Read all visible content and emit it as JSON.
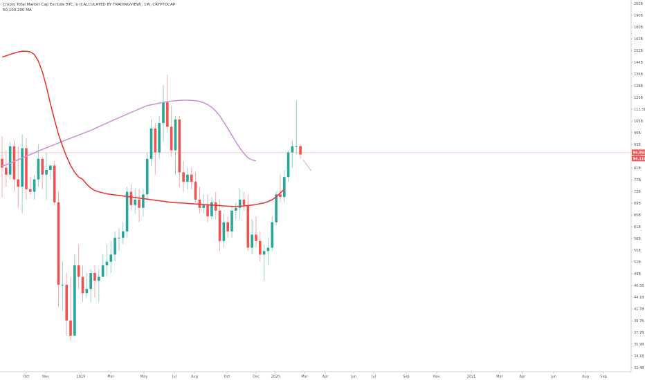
{
  "legend": {
    "title": "Crypto Total Market Cap Exclude BTC, $ (CALCULATED BY TRADINGVIEW), 1W, CRYPTOCAP",
    "ma_line": "50,100,200 MA"
  },
  "colors": {
    "up": "#26a69a",
    "down": "#ef5350",
    "ma_fast": "#e53935",
    "ma_slow": "#ce93d8",
    "price_line": "#f4c7c3",
    "tag_red": "#ef5350",
    "axis_text": "#555555"
  },
  "chart_data": {
    "type": "candlestick",
    "title": "Crypto Total Market Cap Exclude BTC, $ (CALCULATED BY TRADINGVIEW), 1W, CRYPTOCAP",
    "y_axis": {
      "scale": "log",
      "position": "right",
      "ticks": [
        "200B",
        "190B",
        "180B",
        "160B",
        "152B",
        "144B",
        "136B",
        "128B",
        "120B",
        "112.5B",
        "105B",
        "99B",
        "93B",
        "87B",
        "81B",
        "77B",
        "73B",
        "69B",
        "65B",
        "61B",
        "58B",
        "55B",
        "52B",
        "49B",
        "46.5B",
        "44.1B",
        "41.7B",
        "39.7B",
        "37.7B",
        "35.9B",
        "34.1B",
        "32.4B"
      ],
      "price_tags": [
        "94.893B",
        "94.11B"
      ]
    },
    "x_axis": {
      "ticks": [
        "Oct",
        "Nov",
        "2019",
        "Mar",
        "May",
        "Jul",
        "Aug",
        "Oct",
        "Dec",
        "2020",
        "Mar",
        "Apr",
        "Jun",
        "Jul",
        "Sep",
        "Nov",
        "2021",
        "Mar",
        "Apr",
        "Jun",
        "Aug",
        "Sep"
      ]
    },
    "candles": [
      {
        "o": 92,
        "h": 103,
        "l": 76,
        "c": 88
      },
      {
        "o": 88,
        "h": 96,
        "l": 80,
        "c": 85
      },
      {
        "o": 85,
        "h": 100,
        "l": 83,
        "c": 98
      },
      {
        "o": 98,
        "h": 101,
        "l": 78,
        "c": 83
      },
      {
        "o": 83,
        "h": 98,
        "l": 72,
        "c": 80
      },
      {
        "o": 80,
        "h": 104,
        "l": 70,
        "c": 97
      },
      {
        "o": 97,
        "h": 102,
        "l": 75,
        "c": 79
      },
      {
        "o": 79,
        "h": 84,
        "l": 77,
        "c": 78
      },
      {
        "o": 78,
        "h": 85,
        "l": 75,
        "c": 83
      },
      {
        "o": 83,
        "h": 99,
        "l": 80,
        "c": 92
      },
      {
        "o": 92,
        "h": 93,
        "l": 79,
        "c": 85
      },
      {
        "o": 85,
        "h": 95,
        "l": 75,
        "c": 87
      },
      {
        "o": 87,
        "h": 89,
        "l": 83,
        "c": 89
      },
      {
        "o": 89,
        "h": 91,
        "l": 73,
        "c": 74
      },
      {
        "o": 74,
        "h": 78,
        "l": 44,
        "c": 49
      },
      {
        "o": 49,
        "h": 55,
        "l": 43,
        "c": 49
      },
      {
        "o": 49,
        "h": 52,
        "l": 38,
        "c": 41
      },
      {
        "o": 41,
        "h": 51,
        "l": 37,
        "c": 38
      },
      {
        "o": 38,
        "h": 57,
        "l": 38,
        "c": 54
      },
      {
        "o": 54,
        "h": 60,
        "l": 48,
        "c": 51
      },
      {
        "o": 51,
        "h": 54,
        "l": 45,
        "c": 47
      },
      {
        "o": 47,
        "h": 52,
        "l": 46,
        "c": 48
      },
      {
        "o": 48,
        "h": 53,
        "l": 45,
        "c": 52
      },
      {
        "o": 52,
        "h": 54,
        "l": 46,
        "c": 50
      },
      {
        "o": 50,
        "h": 53,
        "l": 45,
        "c": 51
      },
      {
        "o": 51,
        "h": 57,
        "l": 51,
        "c": 54
      },
      {
        "o": 54,
        "h": 60,
        "l": 51,
        "c": 55
      },
      {
        "o": 55,
        "h": 61,
        "l": 52,
        "c": 57
      },
      {
        "o": 57,
        "h": 64,
        "l": 55,
        "c": 62
      },
      {
        "o": 62,
        "h": 65,
        "l": 58,
        "c": 62
      },
      {
        "o": 62,
        "h": 67,
        "l": 60,
        "c": 64
      },
      {
        "o": 64,
        "h": 80,
        "l": 62,
        "c": 78
      },
      {
        "o": 78,
        "h": 81,
        "l": 71,
        "c": 73
      },
      {
        "o": 73,
        "h": 79,
        "l": 70,
        "c": 75
      },
      {
        "o": 75,
        "h": 79,
        "l": 67,
        "c": 72
      },
      {
        "o": 72,
        "h": 79,
        "l": 69,
        "c": 77
      },
      {
        "o": 77,
        "h": 95,
        "l": 75,
        "c": 92
      },
      {
        "o": 92,
        "h": 112,
        "l": 89,
        "c": 107
      },
      {
        "o": 107,
        "h": 110,
        "l": 85,
        "c": 95
      },
      {
        "o": 95,
        "h": 114,
        "l": 92,
        "c": 110
      },
      {
        "o": 110,
        "h": 133,
        "l": 100,
        "c": 122
      },
      {
        "o": 122,
        "h": 140,
        "l": 105,
        "c": 108
      },
      {
        "o": 108,
        "h": 120,
        "l": 93,
        "c": 96
      },
      {
        "o": 96,
        "h": 114,
        "l": 85,
        "c": 112
      },
      {
        "o": 112,
        "h": 114,
        "l": 80,
        "c": 86
      },
      {
        "o": 86,
        "h": 91,
        "l": 78,
        "c": 82
      },
      {
        "o": 82,
        "h": 88,
        "l": 79,
        "c": 85
      },
      {
        "o": 85,
        "h": 88,
        "l": 79,
        "c": 82
      },
      {
        "o": 82,
        "h": 86,
        "l": 74,
        "c": 75
      },
      {
        "o": 75,
        "h": 80,
        "l": 70,
        "c": 72
      },
      {
        "o": 72,
        "h": 77,
        "l": 70,
        "c": 73
      },
      {
        "o": 73,
        "h": 77,
        "l": 67,
        "c": 69
      },
      {
        "o": 69,
        "h": 76,
        "l": 68,
        "c": 74
      },
      {
        "o": 74,
        "h": 78,
        "l": 68,
        "c": 71
      },
      {
        "o": 71,
        "h": 75,
        "l": 58,
        "c": 61
      },
      {
        "o": 61,
        "h": 70,
        "l": 59,
        "c": 67
      },
      {
        "o": 67,
        "h": 69,
        "l": 62,
        "c": 64
      },
      {
        "o": 64,
        "h": 73,
        "l": 62,
        "c": 71
      },
      {
        "o": 71,
        "h": 74,
        "l": 68,
        "c": 72
      },
      {
        "o": 72,
        "h": 79,
        "l": 68,
        "c": 75
      },
      {
        "o": 75,
        "h": 78,
        "l": 71,
        "c": 73
      },
      {
        "o": 73,
        "h": 77,
        "l": 58,
        "c": 59
      },
      {
        "o": 59,
        "h": 68,
        "l": 57,
        "c": 63
      },
      {
        "o": 63,
        "h": 69,
        "l": 59,
        "c": 61
      },
      {
        "o": 61,
        "h": 64,
        "l": 55,
        "c": 57
      },
      {
        "o": 57,
        "h": 60,
        "l": 50,
        "c": 58
      },
      {
        "o": 58,
        "h": 62,
        "l": 54,
        "c": 59
      },
      {
        "o": 59,
        "h": 69,
        "l": 58,
        "c": 67
      },
      {
        "o": 67,
        "h": 78,
        "l": 66,
        "c": 77
      },
      {
        "o": 77,
        "h": 85,
        "l": 74,
        "c": 76
      },
      {
        "o": 76,
        "h": 87,
        "l": 74,
        "c": 84
      },
      {
        "o": 84,
        "h": 96,
        "l": 82,
        "c": 95
      },
      {
        "o": 95,
        "h": 101,
        "l": 88,
        "c": 98
      },
      {
        "o": 98,
        "h": 123,
        "l": 94,
        "c": 98
      },
      {
        "o": 98,
        "h": 99,
        "l": 92,
        "c": 94
      }
    ],
    "ma_fast": [
      153,
      154,
      155,
      156,
      157,
      157.5,
      157.5,
      157,
      155,
      150,
      142,
      132,
      121,
      112,
      104,
      98,
      93,
      89,
      86,
      84,
      83,
      81,
      79.5,
      78.5,
      78,
      77.6,
      77.2,
      77,
      76.8,
      76.6,
      76.4,
      76.2,
      76,
      75.8,
      75.6,
      75.4,
      75.2,
      75,
      74.8,
      74.6,
      74.4,
      74.2,
      74,
      73.9,
      73.8,
      73.7,
      73.6,
      73.5,
      73.4,
      73.3,
      73.2,
      73.1,
      73,
      72.9,
      72.8,
      72.7,
      72.6,
      72.5,
      72.5,
      72.6,
      72.7,
      72.8,
      73,
      73.2,
      73.5,
      73.8,
      74.3,
      75,
      76,
      77.5,
      79
    ],
    "ma_slow": [
      88.8,
      89.3,
      90,
      90.8,
      91.6,
      92.4,
      93.2,
      94,
      94.8,
      95.6,
      96.4,
      97.2,
      98,
      98.8,
      99.6,
      100.4,
      101.2,
      102,
      102.8,
      103.6,
      104.4,
      105.2,
      106,
      107,
      108,
      109,
      110,
      111,
      112,
      113,
      114,
      115,
      116,
      117,
      118,
      119,
      120,
      120.5,
      121,
      121.5,
      122,
      122.4,
      122.7,
      123,
      123.2,
      123.3,
      123.3,
      123.2,
      123,
      122.6,
      121.8,
      120.6,
      119,
      116.8,
      114,
      110.5,
      107,
      103.5,
      100,
      97,
      94.5,
      92.5,
      91.5,
      91
    ],
    "price_line": 94.89
  }
}
